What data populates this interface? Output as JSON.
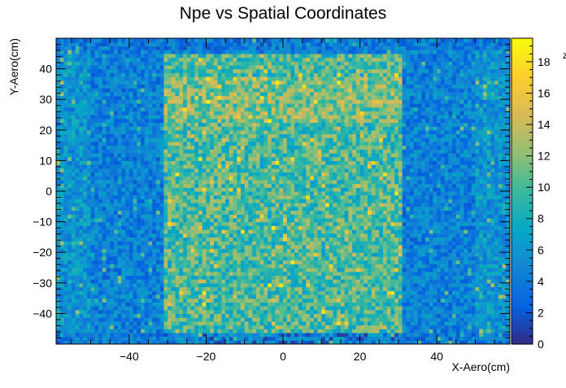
{
  "chart_data": {
    "type": "heatmap",
    "title": "Npe vs Spatial Coordinates",
    "xlabel": "X-Aero(cm)",
    "ylabel": "Y-Aero(cm)",
    "zlabel": "z",
    "xlim": [
      -59,
      59
    ],
    "ylim": [
      -50,
      50
    ],
    "zlim": [
      0,
      19.5
    ],
    "x_ticks": [
      -40,
      -20,
      0,
      20,
      40
    ],
    "x_tick_labels": [
      "−40",
      "−20",
      "0",
      "20",
      "40"
    ],
    "y_ticks": [
      -40,
      -30,
      -20,
      -10,
      0,
      10,
      20,
      30,
      40
    ],
    "y_tick_labels": [
      "−40",
      "−30",
      "−20",
      "−10",
      "0",
      "10",
      "20",
      "30",
      "40"
    ],
    "z_ticks": [
      0,
      2,
      4,
      6,
      8,
      10,
      12,
      14,
      16,
      18
    ],
    "z_tick_labels": [
      "0",
      "2",
      "4",
      "6",
      "8",
      "10",
      "12",
      "14",
      "16",
      "18"
    ],
    "grid": false,
    "colormap": "parula",
    "palette": [
      "#352a87",
      "#0363e1",
      "#1485d4",
      "#06a7c6",
      "#38b99e",
      "#92bf73",
      "#d9ba56",
      "#fcce2e",
      "#f9fb0e"
    ],
    "approx_npe_levels": {
      "central_region_x_range": [
        -31,
        31
      ],
      "central_region_y_range": [
        -50,
        45
      ],
      "central_mean": 10,
      "outer_mean": 4.5,
      "edge_mean": 6
    }
  }
}
